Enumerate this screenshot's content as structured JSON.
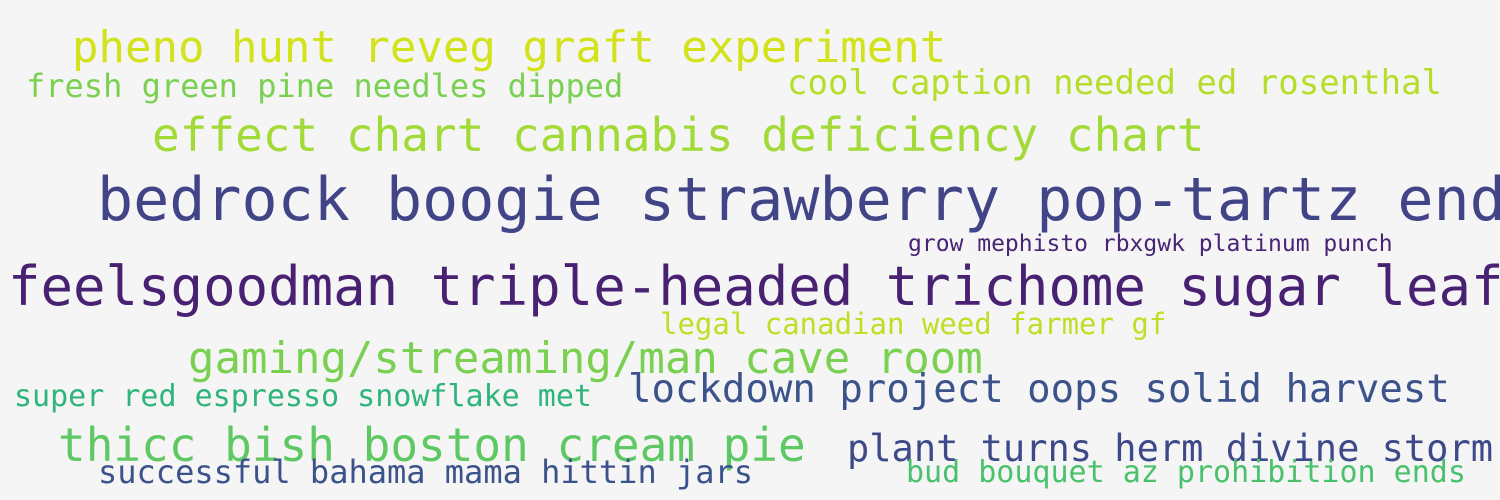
{
  "words": [
    {
      "text": "pheno hunt reveg graft experiment",
      "color": "#d2e21b"
    },
    {
      "text": "fresh green pine needles dipped",
      "color": "#7ad151"
    },
    {
      "text": "cool caption needed ed rosenthal",
      "color": "#b5de2b"
    },
    {
      "text": "effect chart cannabis deficiency chart",
      "color": "#a2da37"
    },
    {
      "text": "bedrock boogie strawberry pop-tartz end",
      "color": "#414487"
    },
    {
      "text": "grow mephisto rbxgwk platinum punch",
      "color": "#482475"
    },
    {
      "text": "feelsgoodman triple-headed trichome sugar leaf",
      "color": "#482173"
    },
    {
      "text": "legal canadian weed farmer gf",
      "color": "#bddf26"
    },
    {
      "text": "gaming/streaming/man cave room",
      "color": "#7ad151"
    },
    {
      "text": "super red espresso snowflake met",
      "color": "#2fb47c"
    },
    {
      "text": "lockdown project oops solid harvest",
      "color": "#3b528b"
    },
    {
      "text": "thicc bish boston cream pie",
      "color": "#5ec962"
    },
    {
      "text": "plant turns herm divine storm",
      "color": "#3e4989"
    },
    {
      "text": "successful bahama mama hittin jars",
      "color": "#3b528b"
    },
    {
      "text": "bud bouquet az prohibition ends",
      "color": "#4ac16d"
    }
  ]
}
